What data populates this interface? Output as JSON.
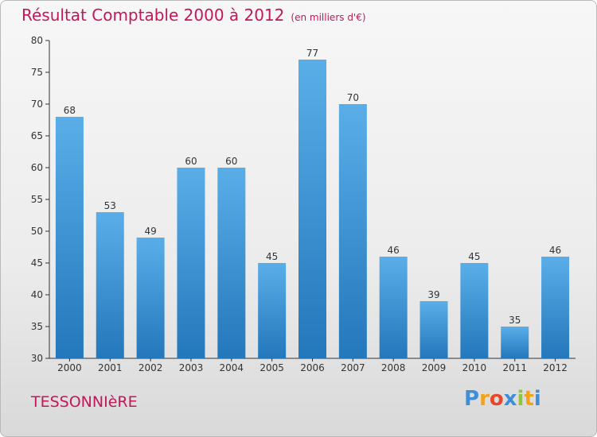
{
  "title": "Résultat Comptable 2000 à 2012",
  "subtitle": "(en milliers d'€)",
  "commune": "TESSONNIèRE",
  "logo": {
    "text": "Proxiti",
    "letters": [
      "P",
      "r",
      "o",
      "x",
      "i",
      "t",
      "i"
    ],
    "colors": [
      "#3f8fd8",
      "#f2a31b",
      "#e8472b",
      "#3f8fd8",
      "#8cc63f",
      "#f2a31b",
      "#3f8fd8"
    ]
  },
  "colors": {
    "bar_top": "#5aaee8",
    "bar_bottom": "#2377bb",
    "title": "#c2185b"
  },
  "chart_data": {
    "type": "bar",
    "title": "Résultat Comptable 2000 à 2012",
    "xlabel": "",
    "ylabel": "",
    "categories": [
      "2000",
      "2001",
      "2002",
      "2003",
      "2004",
      "2005",
      "2006",
      "2007",
      "2008",
      "2009",
      "2010",
      "2011",
      "2012"
    ],
    "values": [
      68,
      53,
      49,
      60,
      60,
      45,
      77,
      70,
      46,
      39,
      45,
      35,
      46
    ],
    "ylim": [
      30,
      80
    ],
    "yticks": [
      30,
      35,
      40,
      45,
      50,
      55,
      60,
      65,
      70,
      75,
      80
    ],
    "grid": false,
    "data_labels": true
  }
}
